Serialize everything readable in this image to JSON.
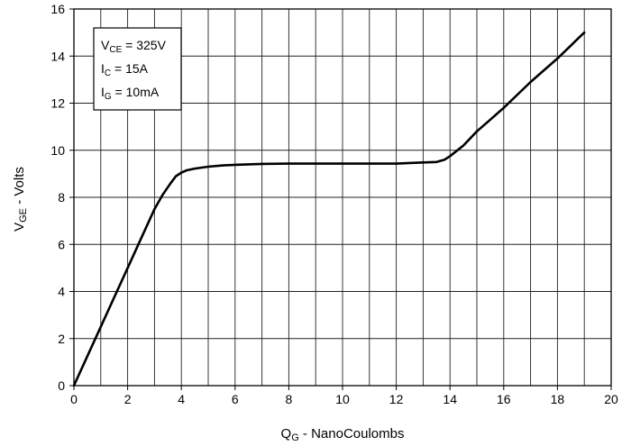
{
  "chart_data": {
    "type": "line",
    "xlabel": {
      "main": "Q",
      "sub": "G",
      "rest": " - NanoCoulombs"
    },
    "ylabel": {
      "main": "V",
      "sub": "GE",
      "rest": " - Volts"
    },
    "xlim": [
      0,
      20
    ],
    "ylim": [
      0,
      16
    ],
    "xticks": [
      0,
      2,
      4,
      6,
      8,
      10,
      12,
      14,
      16,
      18,
      20
    ],
    "yticks": [
      0,
      2,
      4,
      6,
      8,
      10,
      12,
      14,
      16
    ],
    "minor_x_step": 1,
    "grid": true,
    "line_color": "#000000",
    "legend": {
      "placement": "top-left",
      "entries": [
        {
          "main": "V",
          "sub": "CE",
          "rest": " = 325V"
        },
        {
          "main": "I",
          "sub": "C",
          "rest": " = 15A"
        },
        {
          "main": "I",
          "sub": "G",
          "rest": " = 10mA"
        }
      ]
    },
    "series": [
      {
        "x": [
          0,
          0.5,
          1.0,
          1.5,
          2.0,
          2.5,
          3.0,
          3.3,
          3.6,
          3.8,
          4.0,
          4.2,
          4.5,
          5.0,
          5.5,
          6.0,
          6.5,
          7.0,
          8.0,
          9.0,
          10.0,
          11.0,
          12.0,
          12.5,
          13.0,
          13.5,
          13.8,
          14.0,
          14.5,
          15.0,
          15.5,
          16.0,
          17.0,
          18.0,
          19.0
        ],
        "y": [
          0,
          1.25,
          2.5,
          3.75,
          5.0,
          6.25,
          7.5,
          8.1,
          8.6,
          8.9,
          9.05,
          9.15,
          9.22,
          9.3,
          9.35,
          9.38,
          9.4,
          9.42,
          9.43,
          9.43,
          9.43,
          9.43,
          9.43,
          9.46,
          9.48,
          9.5,
          9.6,
          9.75,
          10.2,
          10.8,
          11.3,
          11.8,
          12.9,
          13.9,
          15.0
        ]
      }
    ]
  }
}
